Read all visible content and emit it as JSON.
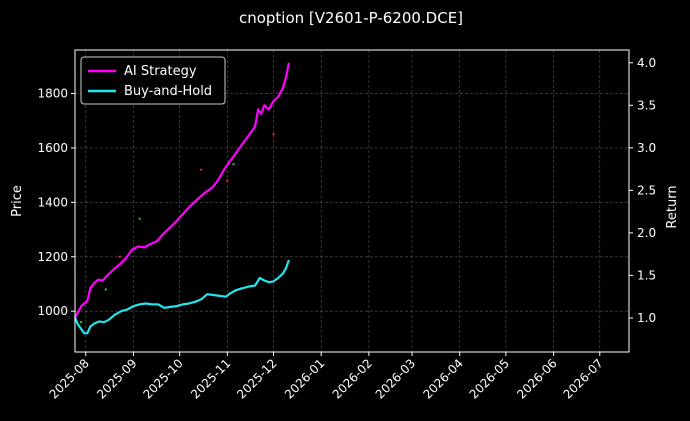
{
  "chart_data": {
    "type": "line",
    "title": "cnoption [V2601-P-6200.DCE]",
    "xlabel": "",
    "ylabel": "Price",
    "ylabel_right": "Return",
    "xlim": [
      "2025-07-25",
      "2026-07-20"
    ],
    "ylim": [
      850,
      1960
    ],
    "ylim_right": [
      0.6,
      4.15
    ],
    "grid": true,
    "legend_position": "top-left",
    "x_ticks": [
      "2025-08",
      "2025-09",
      "2025-10",
      "2025-11",
      "2025-12",
      "2026-01",
      "2026-02",
      "2026-03",
      "2026-04",
      "2026-05",
      "2026-06",
      "2026-07"
    ],
    "y_ticks": [
      1000,
      1200,
      1400,
      1600,
      1800
    ],
    "y_ticks_right": [
      1.0,
      1.5,
      2.0,
      2.5,
      3.0,
      3.5,
      4.0
    ],
    "colors": {
      "ai": "#ff00ff",
      "bh": "#22e5ee",
      "buy": "#2ecc40",
      "sell": "#ff2222"
    },
    "series": [
      {
        "name": "AI Strategy",
        "axis": "right",
        "points": [
          [
            "2025-07-25",
            1.0
          ],
          [
            "2025-07-27",
            1.07
          ],
          [
            "2025-07-29",
            1.14
          ],
          [
            "2025-07-31",
            1.17
          ],
          [
            "2025-08-02",
            1.2
          ],
          [
            "2025-08-04",
            1.35
          ],
          [
            "2025-08-06",
            1.4
          ],
          [
            "2025-08-09",
            1.45
          ],
          [
            "2025-08-12",
            1.44
          ],
          [
            "2025-08-15",
            1.5
          ],
          [
            "2025-08-19",
            1.57
          ],
          [
            "2025-08-23",
            1.63
          ],
          [
            "2025-08-27",
            1.7
          ],
          [
            "2025-08-31",
            1.8
          ],
          [
            "2025-09-04",
            1.84
          ],
          [
            "2025-09-08",
            1.83
          ],
          [
            "2025-09-12",
            1.87
          ],
          [
            "2025-09-16",
            1.9
          ],
          [
            "2025-09-20",
            1.98
          ],
          [
            "2025-09-24",
            2.05
          ],
          [
            "2025-09-28",
            2.12
          ],
          [
            "2025-10-02",
            2.2
          ],
          [
            "2025-10-06",
            2.28
          ],
          [
            "2025-10-10",
            2.35
          ],
          [
            "2025-10-14",
            2.42
          ],
          [
            "2025-10-18",
            2.48
          ],
          [
            "2025-10-22",
            2.53
          ],
          [
            "2025-10-26",
            2.62
          ],
          [
            "2025-10-30",
            2.75
          ],
          [
            "2025-11-03",
            2.85
          ],
          [
            "2025-11-07",
            2.95
          ],
          [
            "2025-11-11",
            3.05
          ],
          [
            "2025-11-15",
            3.15
          ],
          [
            "2025-11-19",
            3.25
          ],
          [
            "2025-11-21",
            3.45
          ],
          [
            "2025-11-23",
            3.4
          ],
          [
            "2025-11-25",
            3.5
          ],
          [
            "2025-11-28",
            3.45
          ],
          [
            "2025-12-01",
            3.55
          ],
          [
            "2025-12-04",
            3.6
          ],
          [
            "2025-12-07",
            3.7
          ],
          [
            "2025-12-09",
            3.82
          ],
          [
            "2025-12-11",
            4.0
          ]
        ]
      },
      {
        "name": "Buy-and-Hold",
        "axis": "right",
        "points": [
          [
            "2025-07-25",
            1.0
          ],
          [
            "2025-07-27",
            0.92
          ],
          [
            "2025-07-29",
            0.87
          ],
          [
            "2025-07-31",
            0.82
          ],
          [
            "2025-08-02",
            0.82
          ],
          [
            "2025-08-04",
            0.9
          ],
          [
            "2025-08-07",
            0.94
          ],
          [
            "2025-08-10",
            0.96
          ],
          [
            "2025-08-13",
            0.95
          ],
          [
            "2025-08-16",
            0.98
          ],
          [
            "2025-08-20",
            1.04
          ],
          [
            "2025-08-24",
            1.08
          ],
          [
            "2025-08-28",
            1.1
          ],
          [
            "2025-09-01",
            1.14
          ],
          [
            "2025-09-05",
            1.16
          ],
          [
            "2025-09-09",
            1.17
          ],
          [
            "2025-09-13",
            1.16
          ],
          [
            "2025-09-17",
            1.16
          ],
          [
            "2025-09-21",
            1.12
          ],
          [
            "2025-09-25",
            1.13
          ],
          [
            "2025-09-29",
            1.14
          ],
          [
            "2025-10-03",
            1.16
          ],
          [
            "2025-10-07",
            1.17
          ],
          [
            "2025-10-11",
            1.19
          ],
          [
            "2025-10-15",
            1.22
          ],
          [
            "2025-10-19",
            1.28
          ],
          [
            "2025-10-23",
            1.27
          ],
          [
            "2025-10-27",
            1.26
          ],
          [
            "2025-10-31",
            1.25
          ],
          [
            "2025-11-03",
            1.29
          ],
          [
            "2025-11-07",
            1.33
          ],
          [
            "2025-11-11",
            1.35
          ],
          [
            "2025-11-15",
            1.37
          ],
          [
            "2025-11-19",
            1.38
          ],
          [
            "2025-11-22",
            1.47
          ],
          [
            "2025-11-25",
            1.44
          ],
          [
            "2025-11-28",
            1.42
          ],
          [
            "2025-12-01",
            1.43
          ],
          [
            "2025-12-04",
            1.47
          ],
          [
            "2025-12-07",
            1.52
          ],
          [
            "2025-12-09",
            1.58
          ],
          [
            "2025-12-11",
            1.68
          ]
        ]
      }
    ],
    "markers": [
      {
        "kind": "buy",
        "points": [
          [
            "2025-09-05",
            1340
          ],
          [
            "2025-08-14",
            1080
          ],
          [
            "2025-11-05",
            1540
          ],
          [
            "2025-07-29",
            960
          ]
        ]
      },
      {
        "kind": "sell",
        "points": [
          [
            "2025-11-01",
            1480
          ],
          [
            "2025-12-01",
            1650
          ],
          [
            "2025-08-23",
            1200
          ],
          [
            "2025-10-15",
            1520
          ]
        ]
      }
    ]
  }
}
